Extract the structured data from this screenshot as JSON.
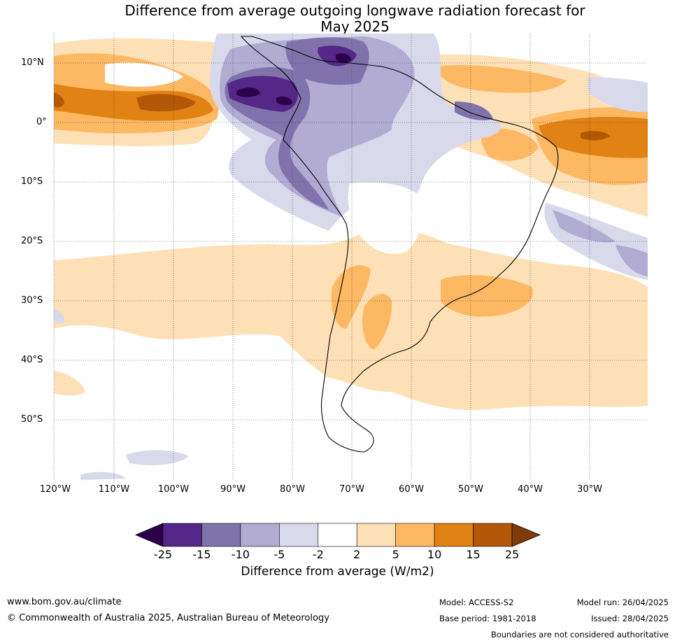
{
  "title": {
    "line1": "Difference from average outgoing longwave radiation forecast for",
    "line2": "May 2025"
  },
  "map": {
    "lat_labels": [
      "10°N",
      "0°",
      "10°S",
      "20°S",
      "30°S",
      "40°S",
      "50°S"
    ],
    "lon_labels": [
      "120°W",
      "110°W",
      "100°W",
      "90°W",
      "80°W",
      "70°W",
      "60°W",
      "50°W",
      "40°W",
      "30°W"
    ]
  },
  "colorbar": {
    "ticks": [
      "-25",
      "-15",
      "-10",
      "-5",
      "-2",
      "2",
      "5",
      "10",
      "15",
      "25"
    ],
    "colors": [
      "#2d004b",
      "#542788",
      "#8073ac",
      "#b2abd2",
      "#d8daeb",
      "#ffffff",
      "#fee0b6",
      "#fdb863",
      "#e08214",
      "#b35806",
      "#7f3b08"
    ],
    "label": "Difference from average (W/m2)"
  },
  "footer": {
    "website": "www.bom.gov.au/climate",
    "copyright": "© Commonwealth of Australia 2025, Australian Bureau of Meteorology",
    "model": "Model: ACCESS-S2",
    "base_period": "Base period: 1981-2018",
    "model_run": "Model run: 26/04/2025",
    "issued": "Issued: 28/04/2025",
    "disclaimer": "Boundaries are not considered authoritative"
  }
}
